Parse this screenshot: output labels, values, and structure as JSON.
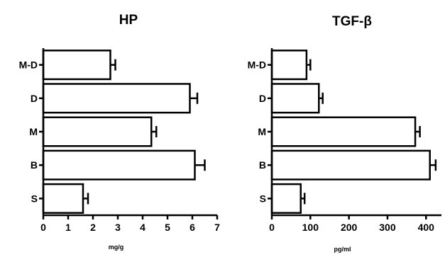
{
  "chart_data": [
    {
      "type": "bar",
      "orientation": "horizontal",
      "title": "HP",
      "xlabel": "mg/g",
      "ylabel": "",
      "categories": [
        "M-D",
        "D",
        "M",
        "B",
        "S"
      ],
      "values": [
        2.7,
        5.9,
        4.35,
        6.1,
        1.6
      ],
      "errors": [
        0.2,
        0.3,
        0.2,
        0.4,
        0.2
      ],
      "xlim": [
        0,
        7
      ],
      "xticks": [
        0,
        1,
        2,
        3,
        4,
        5,
        6,
        7
      ],
      "grid": false,
      "legend": "none"
    },
    {
      "type": "bar",
      "orientation": "horizontal",
      "title": "TGF-β",
      "xlabel": "pg/ml",
      "ylabel": "",
      "categories": [
        "M-D",
        "D",
        "M",
        "B",
        "S"
      ],
      "values": [
        90,
        122,
        372,
        410,
        75
      ],
      "errors": [
        10,
        10,
        12,
        15,
        10
      ],
      "xlim": [
        0,
        440
      ],
      "xticks": [
        0,
        100,
        200,
        300,
        400
      ],
      "grid": false,
      "legend": "none"
    }
  ]
}
